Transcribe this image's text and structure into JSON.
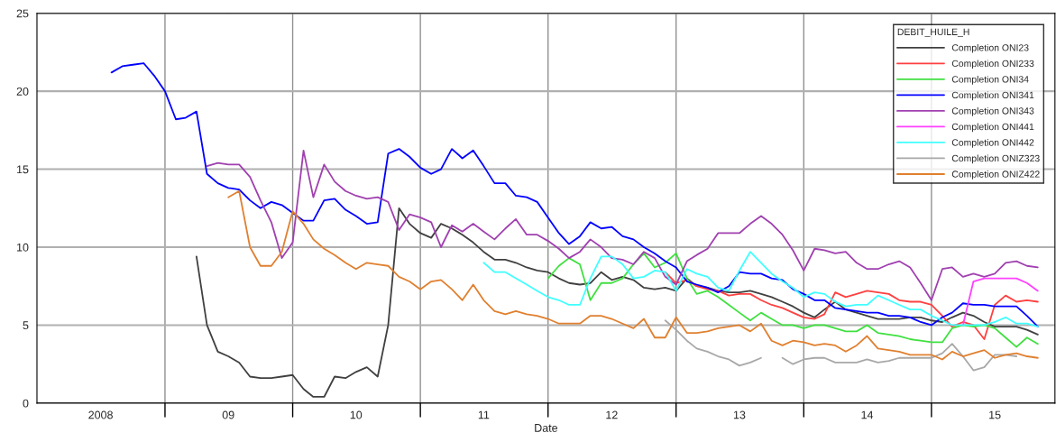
{
  "chart_data": {
    "type": "line",
    "xlabel": "Date",
    "legend_title": "DEBIT_HUILE_H",
    "legend": "top right",
    "grid": true,
    "marker": "none",
    "line_style": "solid",
    "x": [
      "2008-08",
      "2008-09",
      "2008-10",
      "2008-11",
      "2008-12",
      "2009-01",
      "2009-02",
      "2009-03",
      "2009-04",
      "2009-05",
      "2009-06",
      "2009-07",
      "2009-08",
      "2009-09",
      "2009-10",
      "2009-11",
      "2009-12",
      "2010-01",
      "2010-02",
      "2010-03",
      "2010-04",
      "2010-05",
      "2010-06",
      "2010-07",
      "2010-08",
      "2010-09",
      "2010-10",
      "2010-11",
      "2010-12",
      "2011-01",
      "2011-02",
      "2011-03",
      "2011-04",
      "2011-05",
      "2011-06",
      "2011-07",
      "2011-08",
      "2011-09",
      "2011-10",
      "2011-11",
      "2011-12",
      "2012-01",
      "2012-02",
      "2012-03",
      "2012-04",
      "2012-05",
      "2012-06",
      "2012-07",
      "2012-08",
      "2012-09",
      "2012-10",
      "2012-11",
      "2012-12",
      "2013-01",
      "2013-02",
      "2013-03",
      "2013-04",
      "2013-05",
      "2013-06",
      "2013-07",
      "2013-08",
      "2013-09",
      "2013-10",
      "2013-11",
      "2013-12",
      "2014-01",
      "2014-02",
      "2014-03",
      "2014-04",
      "2014-05",
      "2014-06",
      "2014-07",
      "2014-08",
      "2014-09",
      "2014-10",
      "2014-11",
      "2014-12",
      "2015-01",
      "2015-02",
      "2015-03",
      "2015-04",
      "2015-05",
      "2015-06",
      "2015-07",
      "2015-08",
      "2015-09",
      "2015-10",
      "2015-11"
    ],
    "xlim": [
      "2008-01-01",
      "2015-12-20"
    ],
    "xticks": [
      {
        "value": "2008-07-01",
        "label": "2008"
      },
      {
        "value": "2009-01-01",
        "label": null
      },
      {
        "value": "2009-07-01",
        "label": "09"
      },
      {
        "value": "2010-01-01",
        "label": null
      },
      {
        "value": "2010-07-01",
        "label": "10"
      },
      {
        "value": "2011-01-01",
        "label": null
      },
      {
        "value": "2011-07-01",
        "label": "11"
      },
      {
        "value": "2012-01-01",
        "label": null
      },
      {
        "value": "2012-07-01",
        "label": "12"
      },
      {
        "value": "2013-01-01",
        "label": null
      },
      {
        "value": "2013-07-01",
        "label": "13"
      },
      {
        "value": "2014-01-01",
        "label": null
      },
      {
        "value": "2014-07-01",
        "label": "14"
      },
      {
        "value": "2015-01-01",
        "label": null
      },
      {
        "value": "2015-07-01",
        "label": "15"
      }
    ],
    "ylim": [
      0,
      25
    ],
    "yticks": [
      0,
      5,
      10,
      15,
      20,
      25
    ],
    "series": [
      {
        "name": "Completion ONI23",
        "color": "#404040",
        "values": [
          null,
          null,
          null,
          null,
          null,
          null,
          null,
          null,
          9.4,
          5.0,
          3.3,
          3.0,
          2.6,
          1.7,
          1.6,
          1.6,
          1.7,
          1.8,
          0.9,
          0.4,
          0.4,
          1.7,
          1.6,
          2.0,
          2.3,
          1.7,
          5.0,
          12.5,
          11.5,
          10.9,
          10.6,
          11.5,
          11.2,
          10.8,
          10.3,
          9.7,
          9.2,
          9.2,
          9.0,
          8.7,
          8.5,
          8.4,
          8.0,
          7.7,
          7.6,
          7.7,
          8.4,
          7.9,
          8.1,
          7.9,
          7.4,
          7.3,
          7.4,
          7.2,
          8.0,
          7.5,
          7.4,
          7.2,
          7.1,
          7.1,
          7.2,
          7.0,
          6.8,
          6.5,
          6.2,
          5.8,
          5.5,
          6.0,
          6.5,
          6.0,
          5.8,
          5.6,
          5.4,
          5.4,
          5.4,
          5.5,
          5.5,
          5.3,
          5.2,
          5.5,
          5.8,
          5.6,
          5.2,
          4.9,
          4.9,
          4.9,
          4.7,
          4.4
        ]
      },
      {
        "name": "Completion ONI233",
        "color": "#ff4040",
        "values": [
          null,
          null,
          null,
          null,
          null,
          null,
          null,
          null,
          null,
          null,
          null,
          null,
          null,
          null,
          null,
          null,
          null,
          null,
          null,
          null,
          null,
          null,
          null,
          null,
          null,
          null,
          null,
          null,
          null,
          null,
          null,
          null,
          null,
          null,
          null,
          null,
          null,
          null,
          null,
          null,
          null,
          null,
          null,
          null,
          null,
          null,
          null,
          null,
          null,
          null,
          null,
          null,
          8.4,
          7.7,
          7.9,
          7.5,
          7.3,
          7.2,
          6.9,
          7.0,
          7.0,
          6.6,
          6.3,
          6.1,
          5.8,
          5.5,
          5.4,
          5.7,
          7.1,
          6.8,
          7.0,
          7.2,
          7.1,
          7.0,
          6.6,
          6.5,
          6.5,
          6.3,
          5.6,
          4.9,
          5.2,
          5.0,
          4.1,
          6.3,
          6.9,
          6.5,
          6.6,
          6.5
        ]
      },
      {
        "name": "Completion ONI34",
        "color": "#40e040",
        "values": [
          null,
          null,
          null,
          null,
          null,
          null,
          null,
          null,
          null,
          null,
          null,
          null,
          null,
          null,
          null,
          null,
          null,
          null,
          null,
          null,
          null,
          null,
          null,
          null,
          null,
          null,
          null,
          null,
          null,
          null,
          null,
          null,
          null,
          null,
          null,
          null,
          null,
          null,
          null,
          null,
          null,
          8.0,
          8.8,
          9.3,
          8.9,
          6.6,
          7.7,
          7.7,
          8.0,
          8.9,
          9.6,
          8.7,
          9.0,
          9.6,
          8.0,
          7.0,
          7.2,
          6.8,
          6.3,
          5.8,
          5.3,
          5.8,
          5.4,
          5.0,
          5.0,
          4.8,
          5.0,
          5.0,
          4.8,
          4.6,
          4.6,
          5.0,
          4.5,
          4.4,
          4.3,
          4.1,
          4.0,
          3.9,
          3.9,
          4.8,
          5.0,
          4.9,
          5.0,
          4.8,
          4.2,
          3.6,
          4.2,
          3.8
        ]
      },
      {
        "name": "Completion ONI341",
        "color": "#0000ff",
        "values": [
          21.2,
          21.6,
          21.7,
          21.8,
          21.0,
          20.0,
          18.2,
          18.3,
          18.7,
          14.7,
          14.1,
          13.8,
          13.7,
          13.0,
          12.5,
          12.9,
          12.7,
          12.2,
          11.7,
          11.7,
          13.0,
          13.1,
          12.4,
          12.0,
          11.5,
          11.6,
          16.0,
          16.3,
          15.8,
          15.1,
          14.7,
          15.0,
          16.3,
          15.7,
          16.2,
          15.2,
          14.1,
          14.1,
          13.3,
          13.2,
          12.9,
          11.9,
          10.9,
          10.2,
          10.7,
          11.6,
          11.2,
          11.3,
          10.7,
          10.5,
          10.0,
          9.6,
          9.1,
          8.7,
          7.8,
          7.6,
          7.4,
          7.1,
          7.5,
          8.4,
          8.3,
          8.3,
          8.0,
          7.9,
          7.3,
          7.0,
          6.6,
          6.6,
          6.1,
          6.0,
          5.9,
          5.8,
          5.8,
          5.6,
          5.6,
          5.5,
          5.2,
          5.0,
          5.5,
          5.8,
          6.4,
          6.3,
          6.3,
          6.2,
          6.2,
          6.2,
          5.6,
          4.9
        ]
      },
      {
        "name": "Completion ONI343",
        "color": "#a040b0",
        "values": [
          null,
          null,
          null,
          null,
          null,
          null,
          null,
          null,
          null,
          15.2,
          15.4,
          15.3,
          15.3,
          14.5,
          13.0,
          11.6,
          9.3,
          10.3,
          16.2,
          13.2,
          15.3,
          14.2,
          13.6,
          13.3,
          13.1,
          13.2,
          12.9,
          11.1,
          12.1,
          11.9,
          11.6,
          10.0,
          11.4,
          11.0,
          11.5,
          11.0,
          10.5,
          11.2,
          11.8,
          10.8,
          10.8,
          10.4,
          9.9,
          9.3,
          9.7,
          10.5,
          10.0,
          9.3,
          9.2,
          8.9,
          9.7,
          9.3,
          8.1,
          7.6,
          9.1,
          9.5,
          9.9,
          10.9,
          10.9,
          10.9,
          11.5,
          12.0,
          11.5,
          10.8,
          9.8,
          8.5,
          9.9,
          9.8,
          9.6,
          9.7,
          9.0,
          8.6,
          8.6,
          8.9,
          9.1,
          8.7,
          7.7,
          6.6,
          8.6,
          8.7,
          8.1,
          8.3,
          8.1,
          8.3,
          9.0,
          9.1,
          8.8,
          8.7
        ]
      },
      {
        "name": "Completion ONI441",
        "color": "#ff40ff",
        "values": [
          null,
          null,
          null,
          null,
          null,
          null,
          null,
          null,
          null,
          null,
          null,
          null,
          null,
          null,
          null,
          null,
          null,
          null,
          null,
          null,
          null,
          null,
          null,
          null,
          null,
          null,
          null,
          null,
          null,
          null,
          null,
          null,
          null,
          null,
          null,
          null,
          null,
          null,
          null,
          null,
          null,
          null,
          null,
          null,
          null,
          null,
          null,
          null,
          null,
          null,
          null,
          null,
          null,
          null,
          null,
          null,
          null,
          null,
          null,
          null,
          null,
          null,
          null,
          null,
          null,
          null,
          null,
          null,
          null,
          null,
          null,
          null,
          null,
          null,
          null,
          null,
          null,
          null,
          null,
          null,
          5.0,
          7.8,
          8.0,
          8.0,
          8.0,
          8.0,
          7.7,
          7.2
        ]
      },
      {
        "name": "Completion ONI442",
        "color": "#40ffff",
        "values": [
          null,
          null,
          null,
          null,
          null,
          null,
          null,
          null,
          null,
          null,
          null,
          null,
          null,
          null,
          null,
          null,
          null,
          null,
          null,
          null,
          null,
          null,
          null,
          null,
          null,
          null,
          null,
          null,
          null,
          null,
          null,
          null,
          null,
          null,
          null,
          9.0,
          8.4,
          8.4,
          8.0,
          7.6,
          7.2,
          6.8,
          6.6,
          6.3,
          6.3,
          8.0,
          9.4,
          9.4,
          8.9,
          8.0,
          8.1,
          8.5,
          8.4,
          7.2,
          8.6,
          8.3,
          8.1,
          7.4,
          7.2,
          8.5,
          9.7,
          9.0,
          8.3,
          7.8,
          7.4,
          6.8,
          7.1,
          7.0,
          6.5,
          6.2,
          6.3,
          6.3,
          6.9,
          6.6,
          6.3,
          6.0,
          6.0,
          5.6,
          5.3,
          5.0,
          5.0,
          5.0,
          5.0,
          5.2,
          5.5,
          5.1,
          5.1,
          4.9
        ]
      },
      {
        "name": "Completion ONIZ323",
        "color": "#a8a8a8",
        "values": [
          null,
          null,
          null,
          null,
          null,
          null,
          null,
          null,
          null,
          null,
          null,
          null,
          null,
          null,
          null,
          null,
          null,
          null,
          null,
          null,
          null,
          null,
          null,
          null,
          null,
          null,
          null,
          null,
          null,
          null,
          null,
          null,
          null,
          null,
          null,
          null,
          null,
          null,
          null,
          null,
          null,
          null,
          null,
          null,
          null,
          null,
          null,
          null,
          null,
          null,
          null,
          null,
          5.3,
          4.7,
          4.0,
          3.5,
          3.3,
          3.0,
          2.8,
          2.4,
          2.6,
          2.9,
          null,
          2.9,
          2.5,
          2.8,
          2.9,
          2.9,
          2.6,
          2.6,
          2.6,
          2.8,
          2.6,
          2.7,
          2.9,
          2.9,
          2.9,
          2.9,
          3.2,
          3.8,
          3.0,
          2.1,
          2.3,
          3.1,
          3.1,
          3.0,
          null,
          null
        ]
      },
      {
        "name": "Completion ONIZ422",
        "color": "#e08030",
        "values": [
          null,
          null,
          null,
          null,
          null,
          null,
          null,
          null,
          null,
          null,
          null,
          13.2,
          13.6,
          10.0,
          8.8,
          8.8,
          9.7,
          12.3,
          11.5,
          10.5,
          9.9,
          9.5,
          9.0,
          8.6,
          9.0,
          8.9,
          8.8,
          8.1,
          7.8,
          7.3,
          7.8,
          7.9,
          7.3,
          6.6,
          7.6,
          6.6,
          5.9,
          5.7,
          5.9,
          5.7,
          5.6,
          5.4,
          5.1,
          5.1,
          5.1,
          5.6,
          5.6,
          5.4,
          5.1,
          4.8,
          5.4,
          4.2,
          4.2,
          5.5,
          4.5,
          4.5,
          4.6,
          4.8,
          4.9,
          5.0,
          4.6,
          5.1,
          4.0,
          3.7,
          4.0,
          3.9,
          3.7,
          3.8,
          3.7,
          3.3,
          3.7,
          4.3,
          3.5,
          3.4,
          3.3,
          3.1,
          3.1,
          3.1,
          2.8,
          3.3,
          3.0,
          3.2,
          3.4,
          2.9,
          3.1,
          3.2,
          3.0,
          2.9
        ]
      }
    ]
  }
}
